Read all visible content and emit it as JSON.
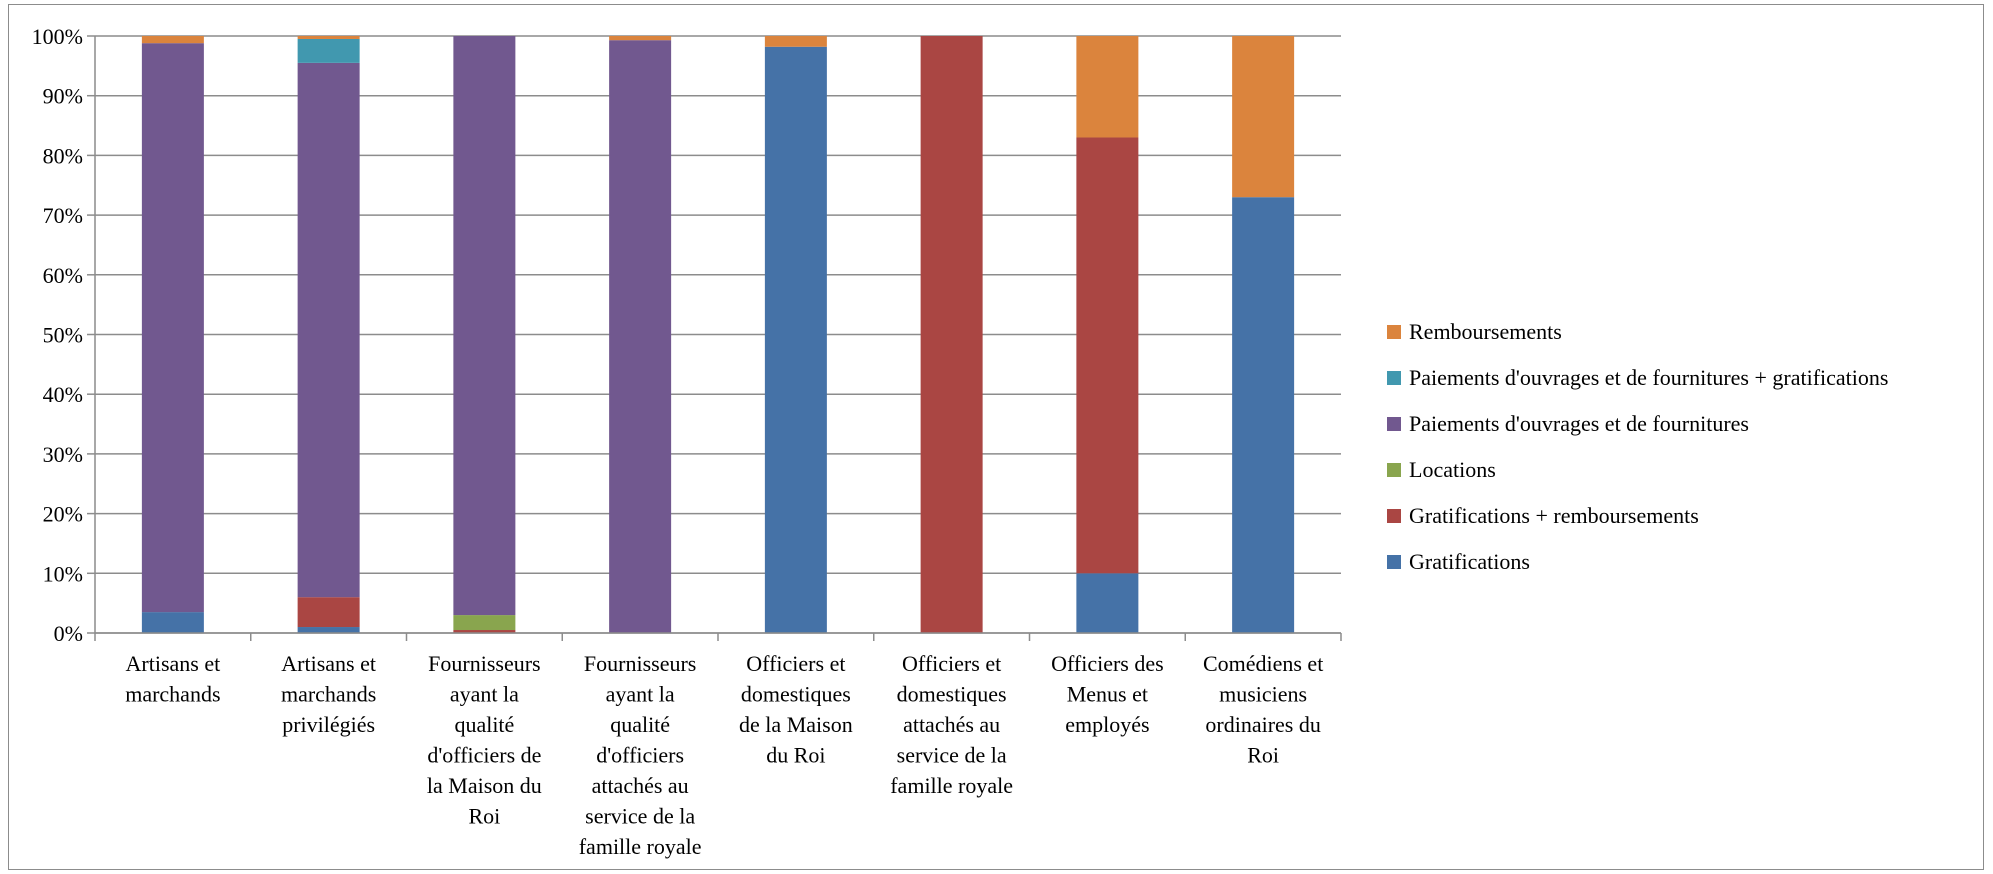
{
  "chart_data": {
    "type": "bar",
    "stacked": true,
    "percent_stacked": true,
    "title": "",
    "xlabel": "",
    "ylabel": "",
    "ylim": [
      0,
      100
    ],
    "y_ticks": [
      "0%",
      "10%",
      "20%",
      "30%",
      "40%",
      "50%",
      "60%",
      "70%",
      "80%",
      "90%",
      "100%"
    ],
    "grid": true,
    "legend_position": "right",
    "categories": [
      "Artisans et marchands",
      "Artisans et marchands privilégiés",
      "Fournisseurs ayant la qualité d'officiers de la Maison du Roi",
      "Fournisseurs ayant la qualité d'officiers attachés au service de la famille royale",
      "Officiers et domestiques de la Maison du Roi",
      "Officiers et domestiques attachés au service de la famille royale",
      "Officiers des Menus et employés",
      "Comédiens et musiciens ordinaires du Roi"
    ],
    "category_label_lines": [
      [
        "Artisans et",
        "marchands"
      ],
      [
        "Artisans et",
        "marchands",
        "privilégiés"
      ],
      [
        "Fournisseurs",
        "ayant la",
        "qualité",
        "d'officiers de",
        "la Maison du",
        "Roi"
      ],
      [
        "Fournisseurs",
        "ayant la",
        "qualité",
        "d'officiers",
        "attachés au",
        "service de la",
        "famille royale"
      ],
      [
        "Officiers et",
        "domestiques",
        "de la Maison",
        "du Roi"
      ],
      [
        "Officiers et",
        "domestiques",
        "attachés au",
        "service de la",
        "famille royale"
      ],
      [
        "Officiers des",
        "Menus et",
        "employés"
      ],
      [
        "Comédiens et",
        "musiciens",
        "ordinaires du",
        "Roi"
      ]
    ],
    "series": [
      {
        "name": "Gratifications",
        "color": "#4572a7",
        "values": [
          3.5,
          1,
          0,
          0,
          98.2,
          0,
          10,
          73
        ]
      },
      {
        "name": "Gratifications + remboursements",
        "color": "#aa4643",
        "values": [
          0,
          5,
          0.5,
          0,
          0,
          100,
          73,
          0
        ]
      },
      {
        "name": "Locations",
        "color": "#89a54e",
        "values": [
          0,
          0,
          2.5,
          0,
          0,
          0,
          0,
          0
        ]
      },
      {
        "name": "Paiements d'ouvrages et de fournitures",
        "color": "#71588f",
        "values": [
          95.3,
          89.5,
          97,
          99.3,
          0,
          0,
          0,
          0
        ]
      },
      {
        "name": "Paiements d'ouvrages et de fournitures + gratifications",
        "color": "#4198af",
        "values": [
          0,
          4,
          0,
          0,
          0,
          0,
          0,
          0
        ]
      },
      {
        "name": "Remboursements",
        "color": "#db843d",
        "values": [
          1.2,
          0.5,
          0,
          0.7,
          1.8,
          0,
          17,
          27
        ]
      }
    ]
  }
}
